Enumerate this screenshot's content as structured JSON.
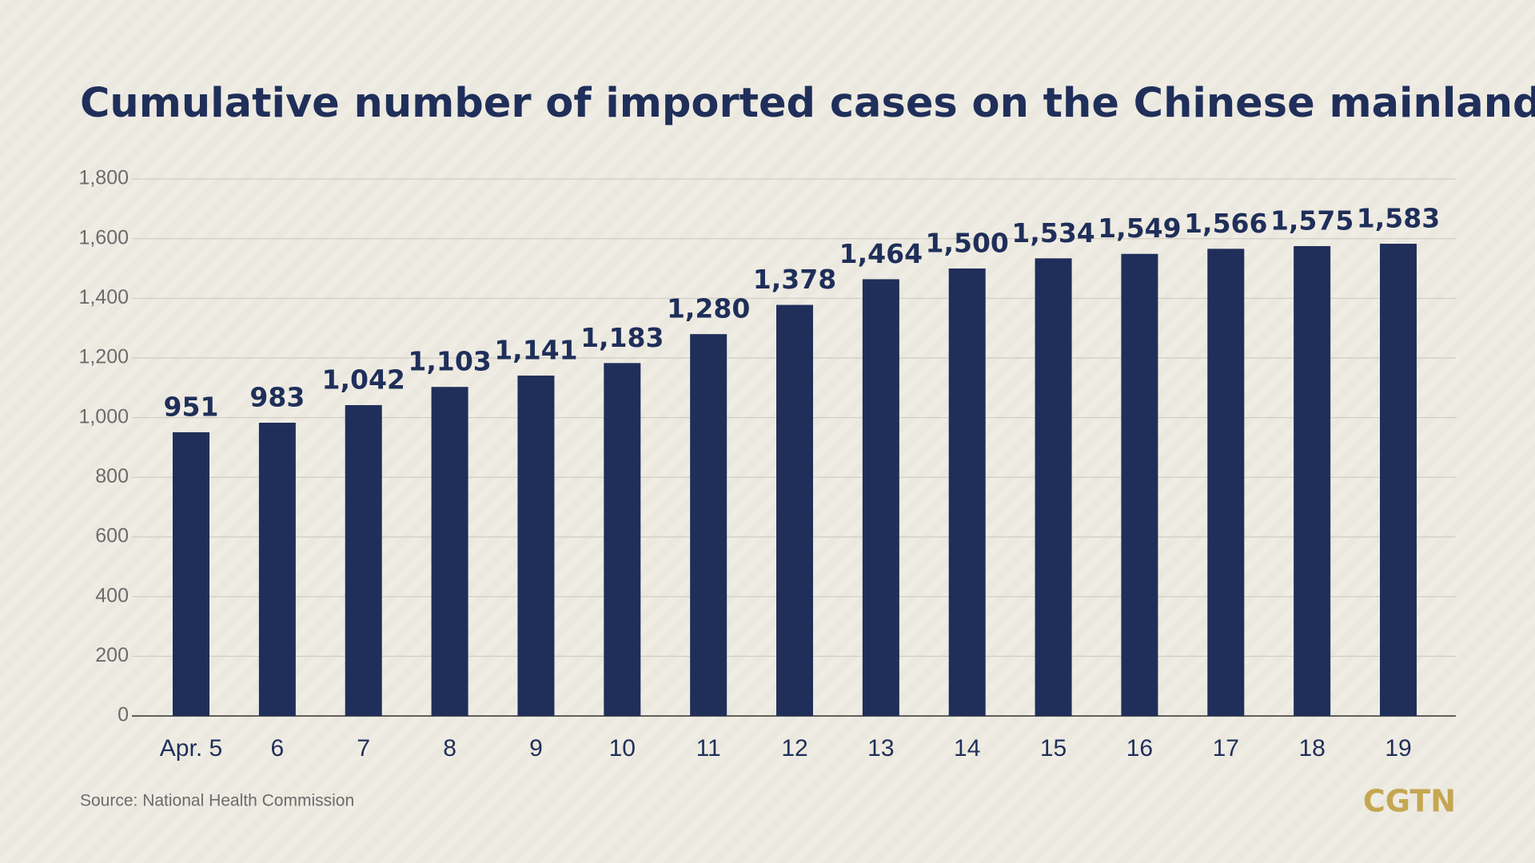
{
  "chart_data": {
    "type": "bar",
    "title": "Cumulative number of imported cases on the Chinese mainland",
    "categories": [
      "Apr. 5",
      "6",
      "7",
      "8",
      "9",
      "10",
      "11",
      "12",
      "13",
      "14",
      "15",
      "16",
      "17",
      "18",
      "19"
    ],
    "values": [
      951,
      983,
      1042,
      1103,
      1141,
      1183,
      1280,
      1378,
      1464,
      1500,
      1534,
      1549,
      1566,
      1575,
      1583
    ],
    "value_labels": [
      "951",
      "983",
      "1,042",
      "1,103",
      "1,141",
      "1,183",
      "1,280",
      "1,378",
      "1,464",
      "1,500",
      "1,534",
      "1,549",
      "1,566",
      "1,575",
      "1,583"
    ],
    "color": "#1f2f5a",
    "ylim": [
      0,
      1800
    ],
    "yticks": [
      0,
      200,
      400,
      600,
      800,
      {
        "value": 1000,
        "label": "1,000"
      },
      {
        "value": 1200,
        "label": "1,200"
      },
      {
        "value": 1400,
        "label": "1,400"
      },
      {
        "value": 1600,
        "label": "1,600"
      },
      {
        "value": 1800,
        "label": "1,800"
      }
    ],
    "grid": true,
    "source": "Source: National Health Commission",
    "brand": "CGTN"
  }
}
